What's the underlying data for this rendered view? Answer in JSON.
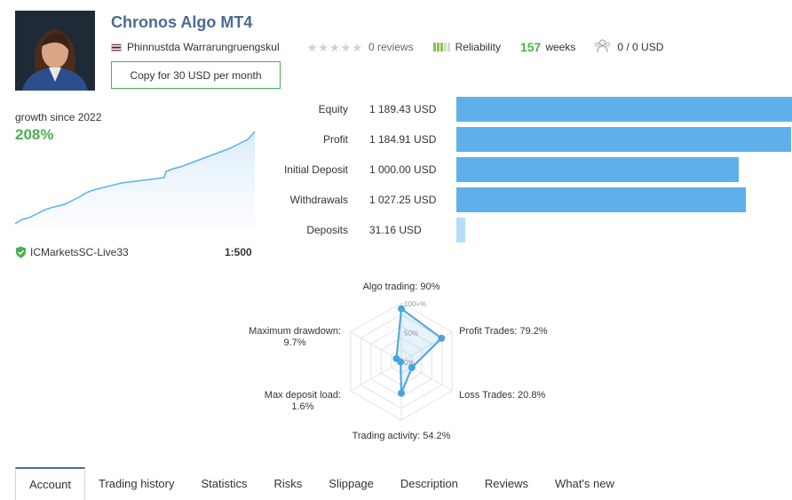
{
  "signal": {
    "title": "Chronos Algo MT4",
    "author": "Phinnustda Warrarungruengskul",
    "reviews": "0 reviews",
    "reliability_label": "Reliability",
    "weeks_value": "157",
    "weeks_label": "weeks",
    "subscribers": "0 / 0 USD",
    "copy_button": "Copy for 30 USD per month",
    "stars_rating": 0,
    "reliability_bars": 5,
    "reliability_filled": 3
  },
  "growth": {
    "label": "growth since 2022",
    "value": "208%",
    "broker": "ICMarketsSC-Live33",
    "leverage": "1:500"
  },
  "stats": [
    {
      "label": "Equity",
      "value": "1 189.43 USD",
      "amount": 1189.43
    },
    {
      "label": "Profit",
      "value": "1 184.91 USD",
      "amount": 1184.91
    },
    {
      "label": "Initial Deposit",
      "value": "1 000.00 USD",
      "amount": 1000.0
    },
    {
      "label": "Withdrawals",
      "value": "1 027.25 USD",
      "amount": 1027.25
    },
    {
      "label": "Deposits",
      "value": "31.16 USD",
      "amount": 31.16
    }
  ],
  "chart_data": {
    "type": "radar",
    "axes": [
      {
        "label": "Algo trading: 90%",
        "value": 90
      },
      {
        "label": "Profit Trades: 79.2%",
        "value": 79.2
      },
      {
        "label": "Loss Trades: 20.8%",
        "value": 20.8
      },
      {
        "label": "Trading activity: 54.2%",
        "value": 54.2
      },
      {
        "label": "Max deposit load:",
        "label2": "1.6%",
        "value": 1.6
      },
      {
        "label": "Maximum drawdown:",
        "label2": "9.7%",
        "value": 9.7
      }
    ],
    "grid_labels": [
      "100+%",
      "50%",
      "0%"
    ],
    "range": [
      0,
      100
    ]
  },
  "tabs": [
    {
      "label": "Account",
      "active": true
    },
    {
      "label": "Trading history"
    },
    {
      "label": "Statistics"
    },
    {
      "label": "Risks"
    },
    {
      "label": "Slippage"
    },
    {
      "label": "Description"
    },
    {
      "label": "Reviews"
    },
    {
      "label": "What's new"
    }
  ],
  "colors": {
    "accent_blue": "#5fb0ea",
    "title_blue": "#4a6b94",
    "green": "#4caf50"
  }
}
